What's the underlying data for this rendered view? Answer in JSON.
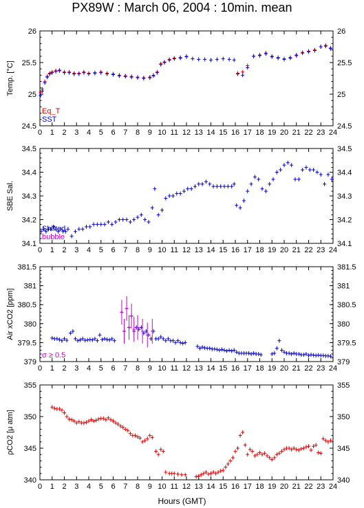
{
  "title": "PX89W : March 06, 2004 : 10min. mean",
  "xlabel": "Hours (GMT)",
  "x_ticks": [
    "0",
    "1",
    "2",
    "3",
    "4",
    "5",
    "6",
    "7",
    "8",
    "9",
    "10",
    "11",
    "12",
    "13",
    "14",
    "15",
    "16",
    "17",
    "18",
    "19",
    "20",
    "21",
    "22",
    "23",
    "24"
  ],
  "chart_data": [
    {
      "type": "scatter",
      "ylabel": "Temp. [°C]",
      "ylim": [
        24.5,
        26
      ],
      "y_ticks": [
        "24.5",
        "25",
        "25.5",
        "26"
      ],
      "legend": [
        "Eq_T",
        "SST"
      ],
      "legend_colors": [
        "#dd0000",
        "#0000cc"
      ],
      "series": [
        {
          "name": "Eq_T",
          "color": "#dd0000",
          "x": [
            0.05,
            0.2,
            0.4,
            0.6,
            0.8,
            1,
            1.3,
            1.6,
            2,
            2.4,
            2.8,
            3.2,
            3.6,
            4,
            4.5,
            5,
            5.5,
            6,
            6.5,
            7,
            7.5,
            8,
            8.5,
            9,
            9.3,
            9.6,
            9.9,
            10.2,
            10.6,
            11,
            11.5,
            12,
            16.2,
            16.6,
            17,
            17.5,
            18,
            18.5,
            19,
            19.5,
            20,
            20.5,
            21,
            21.5,
            22,
            22.5,
            23,
            23.4,
            23.8
          ],
          "y": [
            25.03,
            25.08,
            25.2,
            25.28,
            25.33,
            25.35,
            25.37,
            25.38,
            25.35,
            25.35,
            25.33,
            25.33,
            25.35,
            25.33,
            25.34,
            25.35,
            25.33,
            25.32,
            25.3,
            25.29,
            25.28,
            25.27,
            25.26,
            25.27,
            25.3,
            25.35,
            25.48,
            25.51,
            25.55,
            25.57,
            25.58,
            25.6,
            25.33,
            25.35,
            25.45,
            25.6,
            25.62,
            25.65,
            25.6,
            25.58,
            25.56,
            25.58,
            25.62,
            25.66,
            25.68,
            25.7,
            25.75,
            25.77,
            25.73
          ]
        },
        {
          "name": "SST",
          "color": "#0000cc",
          "x": [
            0.05,
            0.2,
            0.4,
            0.6,
            0.8,
            1,
            1.3,
            1.6,
            2,
            2.4,
            2.8,
            3.2,
            3.6,
            4,
            4.5,
            5,
            5.5,
            6,
            6.5,
            7,
            7.5,
            8,
            8.5,
            9,
            9.3,
            9.6,
            9.9,
            10.2,
            10.6,
            11,
            11.5,
            12,
            12.5,
            13,
            13.5,
            14,
            14.5,
            15,
            15.5,
            15.9,
            16.2,
            16.6,
            17,
            17.5,
            18,
            18.5,
            19,
            19.5,
            20,
            20.5,
            21,
            21.5,
            22,
            22.5,
            23,
            23.4,
            23.8
          ],
          "y": [
            24.98,
            25.05,
            25.18,
            25.27,
            25.32,
            25.34,
            25.36,
            25.37,
            25.34,
            25.34,
            25.32,
            25.32,
            25.34,
            25.32,
            25.33,
            25.34,
            25.32,
            25.31,
            25.29,
            25.28,
            25.27,
            25.26,
            25.25,
            25.26,
            25.29,
            25.34,
            25.47,
            25.5,
            25.54,
            25.56,
            25.57,
            25.59,
            25.56,
            25.55,
            25.55,
            25.54,
            25.55,
            25.56,
            25.55,
            25.54,
            25.32,
            25.3,
            25.42,
            25.6,
            25.61,
            25.64,
            25.59,
            25.57,
            25.55,
            25.57,
            25.61,
            25.65,
            25.67,
            25.69,
            25.75,
            25.76,
            25.72
          ]
        }
      ]
    },
    {
      "type": "scatter",
      "ylabel": "SBE Sal.",
      "ylim": [
        34.1,
        34.5
      ],
      "y_ticks": [
        "34.1",
        "34.2",
        "34.3",
        "34.4",
        "34.5"
      ],
      "legend": [
        "Shifted",
        "bubble"
      ],
      "legend_colors": [
        "#0000cc",
        "#cc00cc"
      ],
      "series": [
        {
          "name": "Sal",
          "color": "#0000cc",
          "x": [
            0.1,
            0.3,
            0.5,
            0.7,
            0.9,
            1.1,
            1.3,
            1.5,
            1.7,
            1.9,
            2.1,
            2.3,
            2.6,
            2.9,
            3.2,
            3.5,
            3.8,
            4.1,
            4.4,
            4.7,
            5,
            5.3,
            5.6,
            5.9,
            6.2,
            6.5,
            6.8,
            7.1,
            7.4,
            7.7,
            8,
            8.3,
            8.6,
            8.9,
            9.2,
            9.4,
            9.7,
            10,
            10.3,
            10.6,
            10.9,
            11.2,
            11.5,
            11.8,
            12.1,
            12.4,
            12.7,
            13,
            13.3,
            13.6,
            13.9,
            14.2,
            14.5,
            14.8,
            15.1,
            15.4,
            15.7,
            15.9,
            16.1,
            16.4,
            16.7,
            17,
            17.3,
            17.6,
            17.9,
            18.2,
            18.5,
            18.8,
            19.1,
            19.4,
            19.7,
            20,
            20.3,
            20.6,
            20.9,
            21.2,
            21.5,
            21.8,
            22.1,
            22.4,
            22.7,
            23,
            23.3,
            23.6,
            23.9
          ],
          "y": [
            34.15,
            34.16,
            34.15,
            34.16,
            34.16,
            34.17,
            34.16,
            34.15,
            34.16,
            34.15,
            34.15,
            34.16,
            34.13,
            34.15,
            34.16,
            34.16,
            34.17,
            34.17,
            34.18,
            34.18,
            34.18,
            34.18,
            34.19,
            34.18,
            34.19,
            34.2,
            34.2,
            34.2,
            34.19,
            34.2,
            34.21,
            34.22,
            34.2,
            34.19,
            34.25,
            34.33,
            34.22,
            34.24,
            34.29,
            34.3,
            34.3,
            34.31,
            34.31,
            34.32,
            34.33,
            34.33,
            34.34,
            34.35,
            34.35,
            34.36,
            34.35,
            34.34,
            34.34,
            34.34,
            34.34,
            34.34,
            34.34,
            34.35,
            34.26,
            34.25,
            34.28,
            34.32,
            34.35,
            34.38,
            34.37,
            34.33,
            34.32,
            34.35,
            34.37,
            34.4,
            34.41,
            34.43,
            34.44,
            34.43,
            34.37,
            34.37,
            34.41,
            34.42,
            34.41,
            34.41,
            34.4,
            34.39,
            34.35,
            34.39,
            34.37
          ]
        }
      ]
    },
    {
      "type": "scatter",
      "ylabel": "Air xCO2 [ppm]",
      "ylim": [
        379,
        381.5
      ],
      "y_ticks": [
        "379",
        "379.5",
        "380",
        "380.5",
        "381",
        "381.5"
      ],
      "legend": [
        "σ ≥ 0.5"
      ],
      "legend_colors": [
        "#cc00cc"
      ],
      "series": [
        {
          "name": "Air xCO2",
          "color": "#0000cc",
          "x": [
            1,
            1.2,
            1.4,
            1.6,
            1.8,
            2,
            2.2,
            2.5,
            2.7,
            2.9,
            3.1,
            3.3,
            3.5,
            3.7,
            3.9,
            4.1,
            4.3,
            4.5,
            4.7,
            4.9,
            5.1,
            5.3,
            5.5,
            5.7,
            5.9,
            6.1,
            6.7,
            6.9,
            7.1,
            7.3,
            7.5,
            7.7,
            7.9,
            8.1,
            8.3,
            8.5,
            8.7,
            8.9,
            9.1,
            9.3,
            9.5,
            9.7,
            9.9,
            10.1,
            10.3,
            10.5,
            10.7,
            10.9,
            11.1,
            11.3,
            11.5,
            11.7,
            11.9,
            12.9,
            13.1,
            13.3,
            13.5,
            13.7,
            13.9,
            14.1,
            14.3,
            14.5,
            14.7,
            14.9,
            15.1,
            15.3,
            15.5,
            15.7,
            15.9,
            16.1,
            16.3,
            16.5,
            16.7,
            16.9,
            17.1,
            17.3,
            17.5,
            17.7,
            17.9,
            18.1,
            19,
            19.2,
            19.4,
            19.6,
            19.8,
            20,
            20.2,
            20.4,
            20.6,
            20.8,
            21,
            21.2,
            21.4,
            21.6,
            21.8,
            22,
            22.2,
            22.4,
            22.6,
            22.8,
            23,
            23.2,
            23.4,
            23.6,
            23.8
          ],
          "y": [
            379.62,
            379.6,
            379.6,
            379.58,
            379.55,
            379.6,
            379.56,
            379.75,
            379.8,
            379.6,
            379.55,
            379.57,
            379.6,
            379.56,
            379.57,
            379.58,
            379.57,
            379.6,
            379.55,
            379.7,
            379.58,
            379.6,
            379.58,
            379.57,
            379.6,
            379.55,
            380.3,
            379.8,
            380.4,
            379.9,
            380.2,
            379.8,
            379.9,
            379.85,
            379.9,
            379.75,
            379.8,
            379.7,
            379.6,
            379.8,
            379.6,
            379.6,
            379.65,
            379.6,
            379.55,
            379.6,
            379.55,
            379.55,
            379.5,
            379.55,
            379.5,
            379.48,
            379.5,
            379.4,
            379.35,
            379.38,
            379.36,
            379.35,
            379.35,
            379.33,
            379.33,
            379.32,
            379.3,
            379.32,
            379.3,
            379.28,
            379.3,
            379.28,
            379.3,
            379.25,
            379.22,
            379.22,
            379.22,
            379.22,
            379.22,
            379.2,
            379.22,
            379.2,
            379.2,
            379.18,
            379.2,
            379.22,
            379.35,
            379.55,
            379.3,
            379.25,
            379.22,
            379.22,
            379.2,
            379.22,
            379.2,
            379.2,
            379.18,
            379.18,
            379.2,
            379.16,
            379.18,
            379.17,
            379.16,
            379.17,
            379.16,
            379.16,
            379.15,
            379.15,
            379.14
          ]
        },
        {
          "name": "σ ≥ 0.5",
          "color": "#cc00cc",
          "x": [
            6.7,
            6.9,
            7.1,
            7.3,
            7.5,
            7.7,
            8,
            8.4,
            8.8,
            9.2
          ],
          "y": [
            380.3,
            379.8,
            380.4,
            379.9,
            380.2,
            379.85,
            379.9,
            379.8,
            379.7,
            379.8
          ]
        }
      ]
    },
    {
      "type": "scatter",
      "ylabel": "ρCO2 [μ atm]",
      "ylim": [
        340,
        355
      ],
      "y_ticks": [
        "340",
        "345",
        "350",
        "355"
      ],
      "series": [
        {
          "name": "pCO2",
          "color": "#dd0000",
          "x": [
            1,
            1.2,
            1.4,
            1.6,
            1.8,
            2,
            2.2,
            2.4,
            2.6,
            2.8,
            3,
            3.2,
            3.4,
            3.6,
            3.8,
            4,
            4.2,
            4.4,
            4.6,
            4.8,
            5,
            5.2,
            5.4,
            5.6,
            5.8,
            6,
            6.2,
            6.4,
            6.6,
            6.8,
            7,
            7.2,
            7.4,
            7.6,
            7.8,
            8,
            8.2,
            8.4,
            8.6,
            8.8,
            9,
            9.2,
            9.5,
            9.7,
            9.9,
            10.1,
            10.3,
            10.6,
            10.8,
            11,
            11.3,
            11.6,
            11.9,
            12.8,
            13,
            13.2,
            13.4,
            13.6,
            13.8,
            14,
            14.2,
            14.4,
            14.6,
            14.8,
            15,
            15.2,
            15.4,
            15.6,
            15.8,
            16,
            16.2,
            16.4,
            16.6,
            16.8,
            17,
            17.2,
            17.4,
            17.6,
            17.8,
            18,
            18.2,
            18.4,
            18.6,
            18.8,
            19,
            19.2,
            19.4,
            19.6,
            19.8,
            20,
            20.2,
            20.4,
            20.6,
            20.8,
            21,
            21.2,
            21.4,
            21.6,
            21.8,
            22,
            22.2,
            22.4,
            22.6,
            22.8,
            23,
            23.2,
            23.4,
            23.6,
            23.8
          ],
          "y": [
            351.5,
            351.3,
            351.2,
            351.2,
            351,
            350.6,
            350,
            349.6,
            349.5,
            349.3,
            349,
            349.2,
            349,
            349,
            349.1,
            349.3,
            349.5,
            349.3,
            349.4,
            349.6,
            349.7,
            349.7,
            349.5,
            349.8,
            349.5,
            349.3,
            349,
            348.8,
            348.5,
            348.3,
            348,
            347.8,
            347.3,
            347,
            347,
            346.8,
            346.6,
            346,
            346.2,
            346.5,
            347,
            346.7,
            344.5,
            344,
            344.8,
            344.5,
            341.2,
            341,
            341,
            341,
            340.9,
            340.8,
            340.8,
            340.5,
            340.6,
            340.8,
            341,
            341.2,
            340.9,
            341,
            341.2,
            341,
            341.2,
            341.4,
            341.5,
            342,
            342.5,
            343,
            343.5,
            344.5,
            345,
            347,
            347.5,
            345.5,
            344,
            344.8,
            344.5,
            343.8,
            344,
            344.3,
            344,
            344.2,
            343.8,
            343.5,
            343.2,
            343.5,
            344,
            344.2,
            344.5,
            344.8,
            345,
            345,
            344.8,
            345,
            344.8,
            344.7,
            344.9,
            345,
            345.2,
            345.3,
            344.7,
            345.3,
            345.5,
            344.3,
            344.2,
            346.5,
            346.2,
            346,
            346.2
          ]
        }
      ]
    }
  ]
}
